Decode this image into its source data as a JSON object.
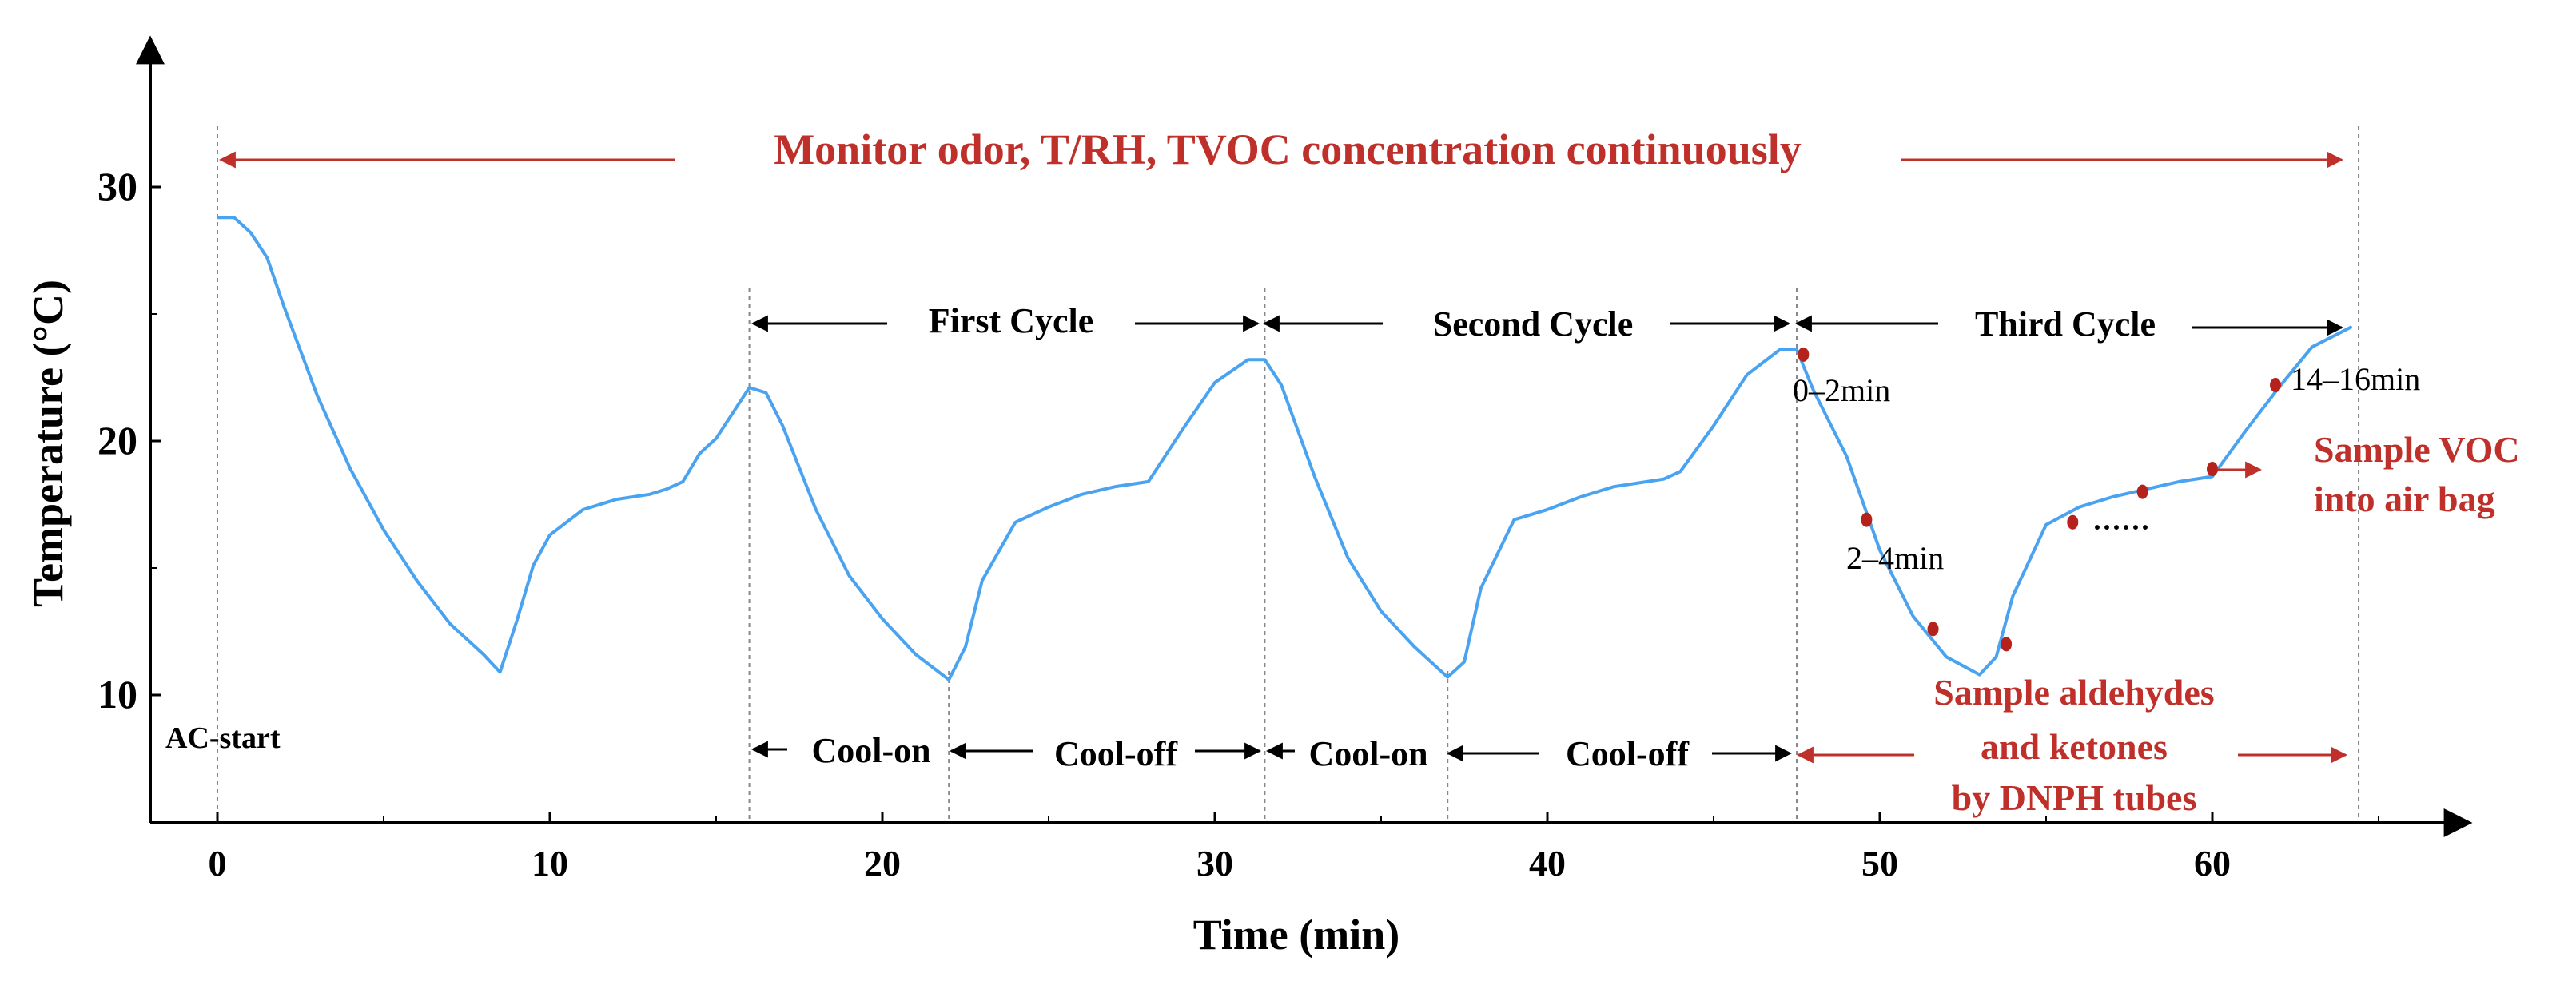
{
  "colors": {
    "curve": "#4aa3f0",
    "annotation_red": "#c0302a",
    "marker_red": "#b5221b",
    "axis": "#000000",
    "text": "#000000",
    "guide": "#888888"
  },
  "chart_data": {
    "type": "line",
    "title": "",
    "xlabel": "Time (min)",
    "ylabel": "Temperature (°C)",
    "xlim": [
      -2,
      67
    ],
    "ylim": [
      5,
      35
    ],
    "xticks": [
      0,
      10,
      20,
      30,
      40,
      50,
      60
    ],
    "xtick_labels": [
      "0",
      "10",
      "20",
      "30",
      "40",
      "50",
      "60"
    ],
    "yticks": [
      10,
      20,
      30
    ],
    "ytick_labels": [
      "10",
      "20",
      "30"
    ],
    "grid": false,
    "series": [
      {
        "name": "Temperature",
        "x": [
          0,
          0.5,
          1,
          1.5,
          2,
          3,
          4,
          5,
          6,
          7,
          8,
          8.5,
          9,
          9.5,
          10,
          11,
          12,
          13,
          13.5,
          14,
          14.5,
          15,
          16,
          16.5,
          17,
          18,
          19,
          20,
          21,
          22,
          22.5,
          23,
          24,
          25,
          26,
          27,
          28,
          29,
          30,
          31,
          31.5,
          32,
          33,
          34,
          35,
          36,
          37,
          37.5,
          38,
          39,
          40,
          41,
          42,
          43,
          43.5,
          44,
          45,
          46,
          47,
          47.5,
          48,
          49,
          50,
          51,
          52,
          53,
          53.5,
          54,
          55,
          56,
          57,
          58,
          59,
          60,
          61,
          62,
          63,
          64.2
        ],
        "y": [
          28.8,
          28.8,
          28.2,
          27.2,
          25.3,
          21.8,
          18.9,
          16.5,
          14.5,
          12.8,
          11.6,
          10.9,
          12.9,
          15.1,
          16.3,
          17.3,
          17.7,
          17.9,
          18.1,
          18.4,
          19.5,
          20.1,
          22.1,
          21.9,
          20.6,
          17.3,
          14.7,
          13.0,
          11.6,
          10.6,
          11.9,
          14.5,
          16.8,
          17.4,
          17.9,
          18.2,
          18.4,
          20.4,
          22.3,
          23.2,
          23.2,
          22.2,
          18.6,
          15.4,
          13.3,
          11.9,
          10.7,
          11.3,
          14.2,
          16.9,
          17.3,
          17.8,
          18.2,
          18.4,
          18.5,
          18.8,
          20.6,
          22.6,
          23.6,
          23.6,
          22.0,
          19.4,
          15.7,
          13.1,
          11.5,
          10.8,
          11.5,
          13.9,
          16.7,
          17.4,
          17.8,
          18.1,
          18.4,
          18.6,
          20.4,
          22.1,
          23.7,
          24.5
        ]
      }
    ],
    "sample_points": {
      "x": [
        47.7,
        49.6,
        51.6,
        53.8,
        55.8,
        57.9,
        60.0,
        61.9
      ],
      "y": [
        23.4,
        16.9,
        12.6,
        12.0,
        16.8,
        18.0,
        18.9,
        22.2
      ]
    },
    "vertical_guides": [
      0,
      16,
      22,
      31.5,
      37,
      47.5,
      64.4
    ]
  },
  "annotations": {
    "monitor": "Monitor odor, T/RH, TVOC concentration continuously",
    "first_cycle": "First Cycle",
    "second_cycle": "Second Cycle",
    "third_cycle": "Third Cycle",
    "ac_start": "AC-start",
    "cool_on_1": "Cool-on",
    "cool_off_1": "Cool-off",
    "cool_on_2": "Cool-on",
    "cool_off_2": "Cool-off",
    "label_0_2": "0–2min",
    "label_2_4": "2–4min",
    "label_14_16": "14–16min",
    "dots": "······",
    "sample_voc_line1": "Sample VOC",
    "sample_voc_line2": "into air bag",
    "aldehydes_line1": "Sample aldehydes",
    "aldehydes_line2": "and ketones",
    "aldehydes_line3": "by DNPH tubes"
  }
}
